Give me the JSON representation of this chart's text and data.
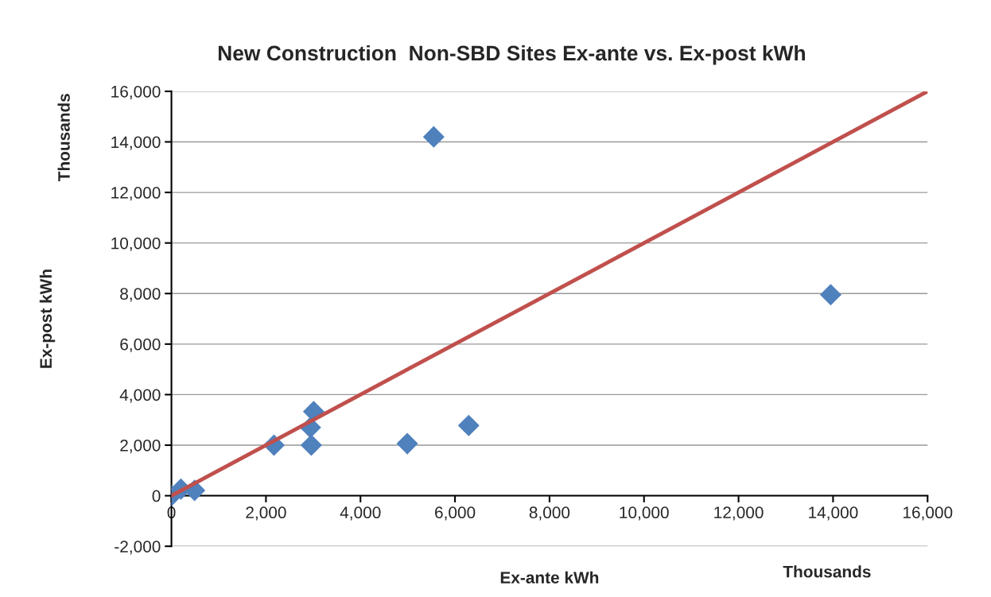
{
  "chart_data": {
    "type": "scatter",
    "title": "New Construction  Non-SBD Sites Ex-ante vs. Ex-post kWh",
    "xlabel": "Ex-ante kWh",
    "ylabel": "Ex-post kWh",
    "annotations": [
      "Thousands",
      "Thousands"
    ],
    "series": [
      {
        "color": "#4f81bd",
        "marker": "diamond",
        "x": [
          0,
          200,
          490,
          2170,
          2940,
          3010,
          2960,
          4990,
          6290,
          5550,
          13950
        ],
        "values": [
          0,
          260,
          210,
          2000,
          2700,
          3330,
          2000,
          2060,
          2780,
          14200,
          7950
        ]
      },
      {
        "type": "line",
        "color": "#c0504d",
        "marker": "none",
        "x": [
          0,
          16000
        ],
        "values": [
          0,
          16000
        ]
      }
    ],
    "xlim": [
      0,
      16000
    ],
    "ylim": [
      -2000,
      16000
    ],
    "xticks": [
      0,
      {
        "value": 2000,
        "label": "2,000"
      },
      {
        "value": 4000,
        "label": "4,000"
      },
      {
        "value": 6000,
        "label": "6,000"
      },
      {
        "value": 8000,
        "label": "8,000"
      },
      {
        "value": 10000,
        "label": "10,000"
      },
      {
        "value": 12000,
        "label": "12,000"
      },
      {
        "value": 14000,
        "label": "14,000"
      },
      {
        "value": 16000,
        "label": "16,000"
      }
    ],
    "yticks": [
      {
        "value": -2000,
        "label": "-2,000"
      },
      0,
      {
        "value": 2000,
        "label": "2,000"
      },
      {
        "value": 4000,
        "label": "4,000"
      },
      {
        "value": 6000,
        "label": "6,000"
      },
      {
        "value": 8000,
        "label": "8,000"
      },
      {
        "value": 10000,
        "label": "10,000"
      },
      {
        "value": 12000,
        "label": "12,000"
      },
      {
        "value": 14000,
        "label": "14,000"
      },
      {
        "value": 16000,
        "label": "16,000"
      }
    ],
    "grid": "y"
  }
}
